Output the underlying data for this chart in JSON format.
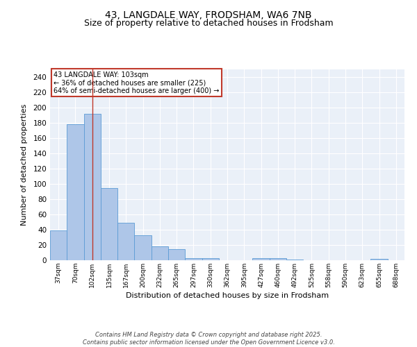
{
  "title": "43, LANGDALE WAY, FRODSHAM, WA6 7NB",
  "subtitle": "Size of property relative to detached houses in Frodsham",
  "xlabel": "Distribution of detached houses by size in Frodsham",
  "ylabel": "Number of detached properties",
  "categories": [
    "37sqm",
    "70sqm",
    "102sqm",
    "135sqm",
    "167sqm",
    "200sqm",
    "232sqm",
    "265sqm",
    "297sqm",
    "330sqm",
    "362sqm",
    "395sqm",
    "427sqm",
    "460sqm",
    "492sqm",
    "525sqm",
    "558sqm",
    "590sqm",
    "623sqm",
    "655sqm",
    "688sqm"
  ],
  "values": [
    39,
    178,
    192,
    95,
    49,
    33,
    18,
    15,
    3,
    3,
    0,
    0,
    3,
    3,
    1,
    0,
    0,
    0,
    0,
    2,
    0
  ],
  "bar_color": "#aec6e8",
  "bar_edge_color": "#5b9bd5",
  "vline_x": 2,
  "vline_color": "#c0392b",
  "annotation_text": "43 LANGDALE WAY: 103sqm\n← 36% of detached houses are smaller (225)\n64% of semi-detached houses are larger (400) →",
  "annotation_box_color": "white",
  "annotation_box_edge_color": "#c0392b",
  "ylim": [
    0,
    250
  ],
  "yticks": [
    0,
    20,
    40,
    60,
    80,
    100,
    120,
    140,
    160,
    180,
    200,
    220,
    240
  ],
  "background_color": "#eaf0f8",
  "footer_text": "Contains HM Land Registry data © Crown copyright and database right 2025.\nContains public sector information licensed under the Open Government Licence v3.0.",
  "title_fontsize": 10,
  "subtitle_fontsize": 9,
  "xlabel_fontsize": 8,
  "ylabel_fontsize": 8
}
